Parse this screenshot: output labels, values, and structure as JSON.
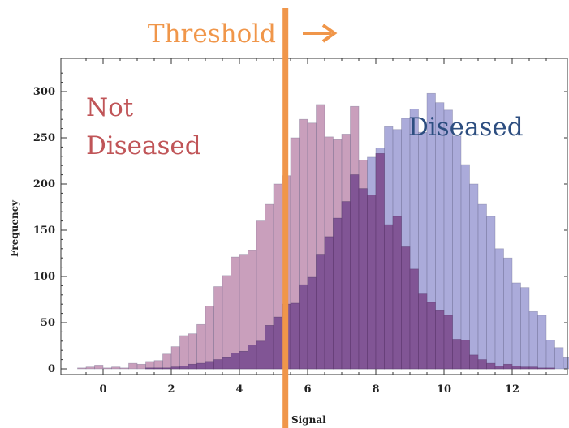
{
  "chart_data": {
    "type": "bar",
    "xlabel": "Signal",
    "ylabel": "Frequency",
    "xlim": [
      -1,
      13.5
    ],
    "ylim": [
      0,
      320
    ],
    "x_ticks": [
      0,
      2,
      4,
      6,
      8,
      10,
      12
    ],
    "y_ticks": [
      0,
      50,
      100,
      150,
      200,
      250,
      300
    ],
    "bin_width": 0.25,
    "bin_start": -0.75,
    "series": [
      {
        "name": "Not Diseased",
        "color": "#b77fa6",
        "values": [
          1,
          2,
          4,
          1,
          2,
          1,
          6,
          5,
          8,
          9,
          16,
          24,
          36,
          38,
          48,
          68,
          89,
          101,
          121,
          124,
          128,
          160,
          178,
          200,
          209,
          250,
          270,
          266,
          286,
          251,
          248,
          254,
          284,
          226,
          188,
          233,
          156,
          165,
          132,
          108,
          81,
          72,
          63,
          58,
          32,
          31,
          15,
          10,
          6,
          3,
          5,
          3,
          2,
          2,
          1,
          1,
          0,
          0,
          0,
          0
        ]
      },
      {
        "name": "Diseased",
        "color": "#8f8fce",
        "values": [
          0,
          0,
          0,
          0,
          0,
          0,
          0,
          0,
          1,
          1,
          1,
          2,
          3,
          5,
          6,
          8,
          10,
          12,
          17,
          19,
          26,
          30,
          47,
          56,
          70,
          71,
          91,
          99,
          124,
          143,
          163,
          181,
          210,
          195,
          229,
          239,
          262,
          259,
          271,
          281,
          256,
          298,
          288,
          280,
          252,
          221,
          200,
          178,
          165,
          130,
          120,
          93,
          88,
          62,
          58,
          31,
          23,
          12,
          8,
          3
        ]
      }
    ],
    "overlap_color": "#7b4a8c",
    "annotations": {
      "threshold": "Threshold",
      "arrow": "➔",
      "not_diseased_line1": "Not",
      "not_diseased_line2": "Diseased",
      "diseased": "Diseased"
    },
    "threshold_x": 5.35,
    "threshold_color": "#f0964a",
    "not_diseased_text_color": "#c05558",
    "diseased_text_color": "#2d4e80"
  }
}
